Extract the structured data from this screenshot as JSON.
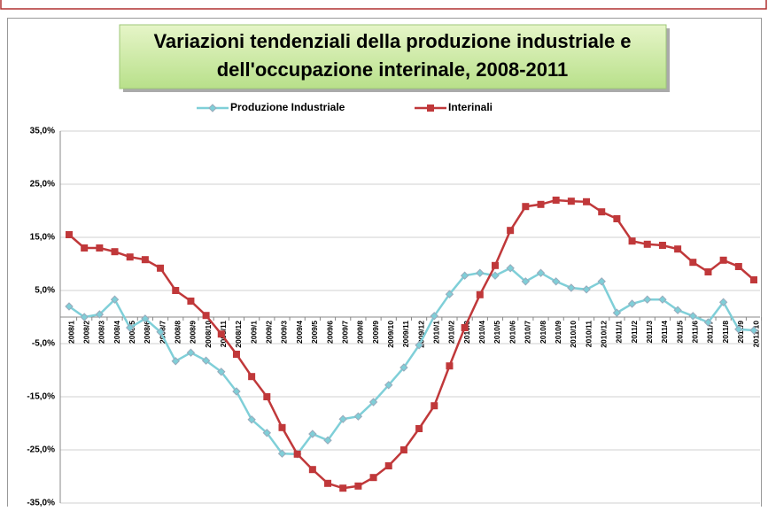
{
  "chart_data": {
    "type": "line",
    "title": [
      "Variazioni tendenziali della produzione industriale e",
      "dell'occupazione interinale, 2008-2011"
    ],
    "categories": [
      "2008/1",
      "2008/2",
      "2008/3",
      "2008/4",
      "2008/5",
      "2008/6",
      "2008/7",
      "2008/8",
      "2008/9",
      "2008/10",
      "2008/11",
      "2008/12",
      "2009/1",
      "2009/2",
      "2009/3",
      "2009/4",
      "2009/5",
      "2009/6",
      "2009/7",
      "2009/8",
      "2009/9",
      "2009/10",
      "2009/11",
      "2009/12",
      "2010/1",
      "2010/2",
      "2010/3",
      "2010/4",
      "2010/5",
      "2010/6",
      "2010/7",
      "2010/8",
      "2010/9",
      "2010/10",
      "2010/11",
      "2010/12",
      "2011/1",
      "2011/2",
      "2011/3",
      "2011/4",
      "2011/5",
      "2011/6",
      "2011/7",
      "2011/8",
      "2011/9",
      "2011/10"
    ],
    "series": [
      {
        "name": "Produzione Industriale",
        "color": "#7fcfd8",
        "marker": "diamond",
        "values": [
          2,
          0,
          0.5,
          3.3,
          -2,
          -0.3,
          -2.8,
          -8.3,
          -6.7,
          -8.2,
          -10.3,
          -14,
          -19.3,
          -21.8,
          -25.7,
          -25.8,
          -22,
          -23.2,
          -19.2,
          -18.7,
          -16,
          -12.8,
          -9.5,
          -5.3,
          0.2,
          4.3,
          7.8,
          8.3,
          7.8,
          9.2,
          6.7,
          8.3,
          6.7,
          5.5,
          5.2,
          6.7,
          0.8,
          2.5,
          3.3,
          3.3,
          1.3,
          0.2,
          -1,
          2.8,
          -2.3,
          -2.5
        ]
      },
      {
        "name": "Interinali",
        "color": "#c0383a",
        "marker": "square",
        "values": [
          15.5,
          13,
          13,
          12.3,
          11.3,
          10.8,
          9.2,
          5,
          3,
          0.3,
          -3.2,
          -7,
          -11.2,
          -15,
          -20.8,
          -25.8,
          -28.7,
          -31.3,
          -32.2,
          -31.8,
          -30.2,
          -28,
          -25,
          -21,
          -16.7,
          -9.2,
          -2,
          4.2,
          9.7,
          16.3,
          20.8,
          21.2,
          22,
          21.8,
          21.7,
          19.8,
          18.5,
          14.3,
          13.7,
          13.5,
          12.8,
          10.3,
          8.5,
          10.7,
          9.5,
          7
        ]
      }
    ],
    "ylim": [
      -35,
      35
    ],
    "yticks": [
      {
        "value": -35,
        "label": "-35,0%"
      },
      {
        "value": -25,
        "label": "-25,0%"
      },
      {
        "value": -15,
        "label": "-15,0%"
      },
      {
        "value": -5,
        "label": "-5,0%"
      },
      {
        "value": 5,
        "label": "5,0%"
      },
      {
        "value": 15,
        "label": "15,0%"
      },
      {
        "value": 25,
        "label": "25,0%"
      },
      {
        "value": 35,
        "label": "35,0%"
      }
    ],
    "grid": true,
    "legend": "top"
  }
}
